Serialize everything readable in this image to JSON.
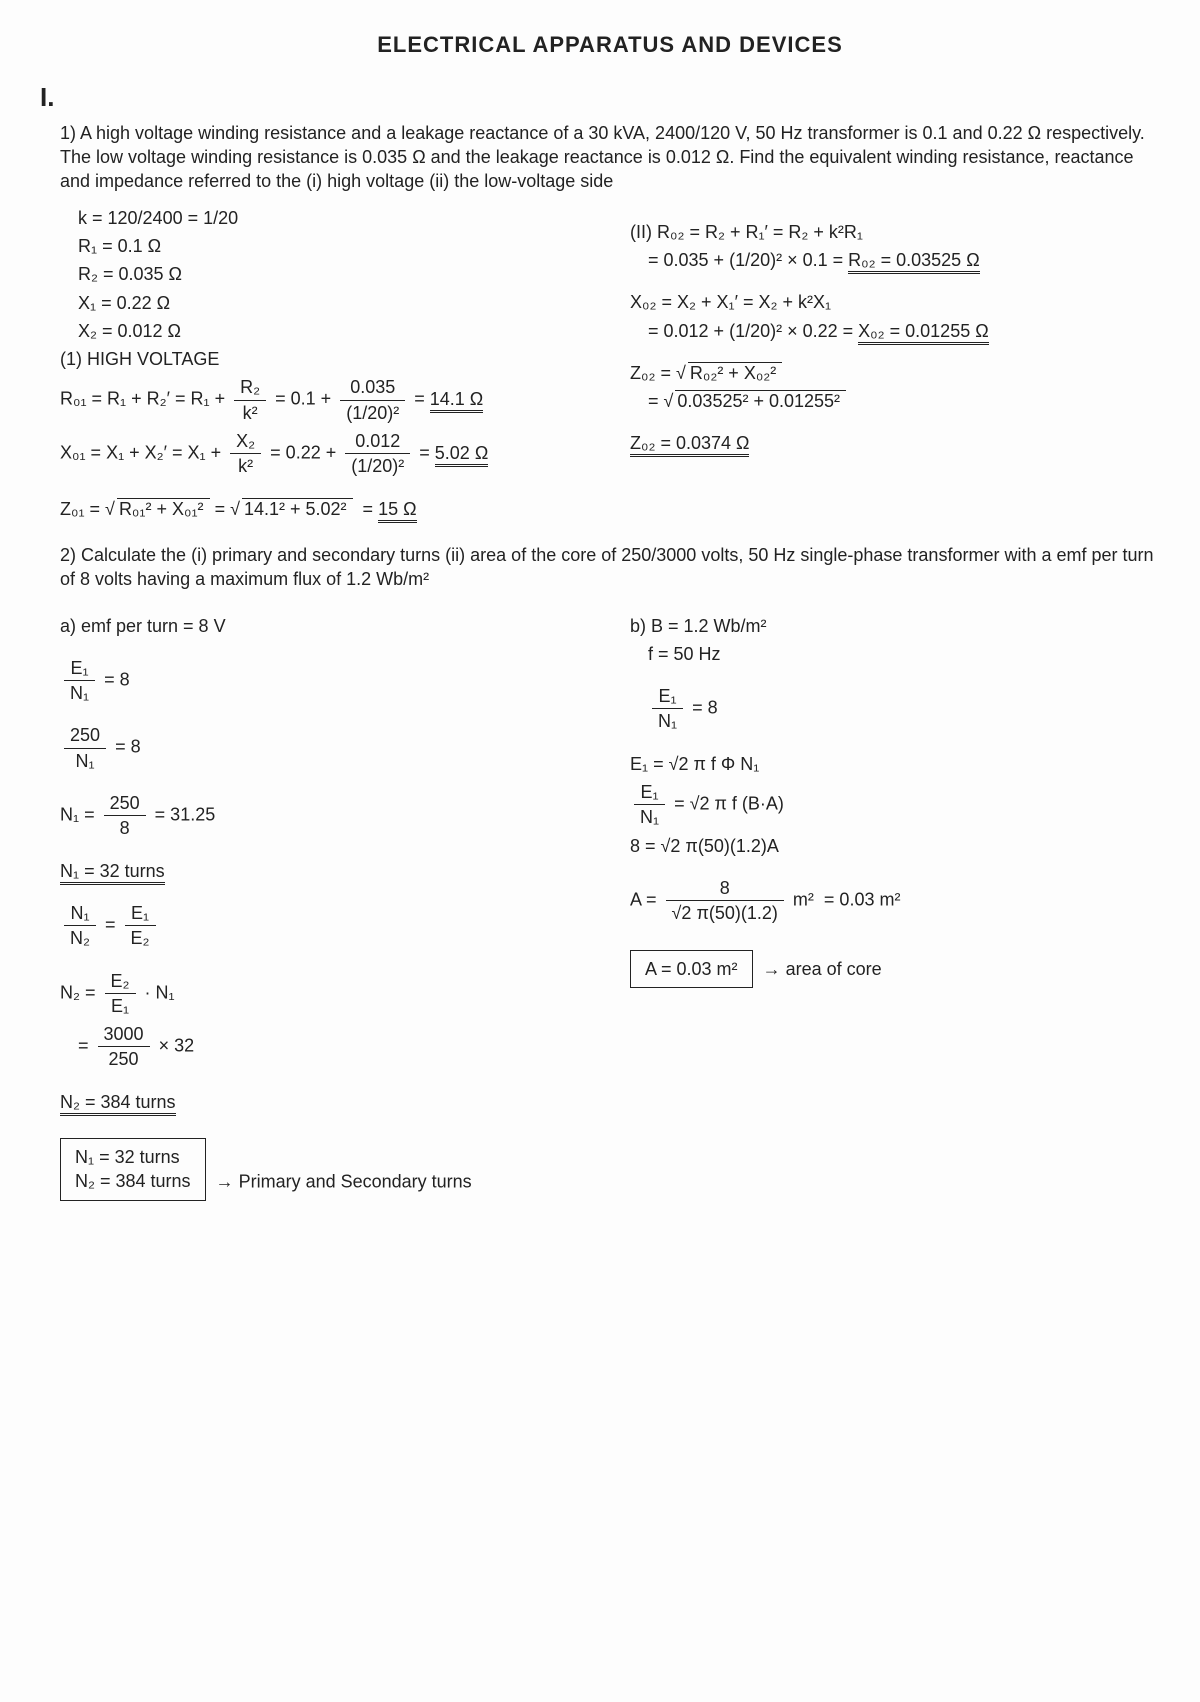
{
  "title": "ELECTRICAL APPARATUS AND DEVICES",
  "section": "I.",
  "q1": {
    "text": "1) A high voltage winding resistance and a leakage reactance of a 30 kVA, 2400/120 V, 50 Hz transformer is 0.1 and 0.22 Ω respectively. The low voltage winding resistance is 0.035 Ω and the leakage reactance is 0.012 Ω. Find the equivalent winding resistance, reactance and impedance referred to the (i) high voltage (ii) the low-voltage side",
    "given": {
      "k": "k = 120/2400 = 1/20",
      "R1": "R₁ = 0.1 Ω",
      "R2": "R₂ = 0.035 Ω",
      "X1": "X₁ = 0.22 Ω",
      "X2": "X₂ = 0.012 Ω"
    },
    "hv": {
      "head": "(1) HIGH VOLTAGE",
      "R01_lhs": "R₀₁ = R₁ + R₂′ = R₁ +",
      "R01_frac_num": "R₂",
      "R01_frac_den": "k²",
      "R01_mid": "= 0.1 +",
      "R01_num2": "0.035",
      "R01_den2": "(1/20)²",
      "R01_ans": "14.1 Ω",
      "X01_lhs": "X₀₁ = X₁ + X₂′ = X₁ +",
      "X01_frac_num": "X₂",
      "X01_frac_den": "k²",
      "X01_mid": "= 0.22 +",
      "X01_num2": "0.012",
      "X01_den2": "(1/20)²",
      "X01_ans": "5.02 Ω",
      "Z01_lhs": "Z₀₁ = √",
      "Z01_rad": "R₀₁² + X₀₁²",
      "Z01_mid": " = √",
      "Z01_rad2": "14.1² + 5.02²",
      "Z01_ans": "15 Ω"
    },
    "lv": {
      "head": "(II) R₀₂ = R₂ + R₁′ = R₂ + k²R₁",
      "R02_calc": "= 0.035 + (1/20)² × 0.1  =",
      "R02_ans": "R₀₂ = 0.03525 Ω",
      "X02_lhs": "X₀₂ = X₂ + X₁′ = X₂ + k²X₁",
      "X02_calc": "= 0.012 + (1/20)² × 0.22  =",
      "X02_ans": "X₀₂ = 0.01255 Ω",
      "Z02_lhs": "Z₀₂ = √",
      "Z02_rad": "R₀₂² + X₀₂²",
      "Z02_calc": "= √",
      "Z02_rad2": "0.03525² + 0.01255²",
      "Z02_ans": "Z₀₂ = 0.0374 Ω"
    }
  },
  "q2": {
    "text": "2) Calculate the (i) primary and secondary turns (ii) area of the core of 250/3000 volts, 50 Hz single-phase transformer with a emf per turn of 8 volts having a maximum flux of 1.2 Wb/m²",
    "a": {
      "head": "a) emf per turn = 8 V",
      "e1n1_num": "E₁",
      "e1n1_den": "N₁",
      "e1n1_rhs": "= 8",
      "l250_num": "250",
      "l250_den": "N₁",
      "l250_rhs": "= 8",
      "N1calc_lhs": "N₁ =",
      "N1calc_num": "250",
      "N1calc_den": "8",
      "N1calc_rhs": "= 31.25",
      "N1ans": "N₁ = 32 turns",
      "ratio_lnum": "N₁",
      "ratio_lden": "N₂",
      "ratio_eq": "=",
      "ratio_rnum": "E₁",
      "ratio_rden": "E₂",
      "N2_lhs": "N₂ =",
      "N2_num": "E₂",
      "N2_den": "E₁",
      "N2_mid": "· N₁",
      "N2c_num": "3000",
      "N2c_den": "250",
      "N2c_rhs": "× 32",
      "N2ans": "N₂ = 384 turns",
      "box1": "N₁ = 32 turns",
      "box2": "N₂ = 384 turns",
      "boxnote": "→ Primary and Secondary turns"
    },
    "b": {
      "head": "b)  B = 1.2 Wb/m²",
      "f": "f = 50 Hz",
      "e1n1b_num": "E₁",
      "e1n1b_den": "N₁",
      "e1n1b_rhs": "= 8",
      "emf1": "E₁ = √2 π f Φ N₁",
      "emf2_lnum": "E₁",
      "emf2_lden": "N₁",
      "emf2_rhs": "= √2 π f (B·A)",
      "emf3": "8 = √2 π(50)(1.2)A",
      "A_lhs": "A =",
      "A_num": "8",
      "A_den": "√2 π(50)(1.2)",
      "A_unit": " m²",
      "A_rhs": "= 0.03 m²",
      "box": "A = 0.03 m²",
      "boxnote": "→ area of core"
    }
  }
}
